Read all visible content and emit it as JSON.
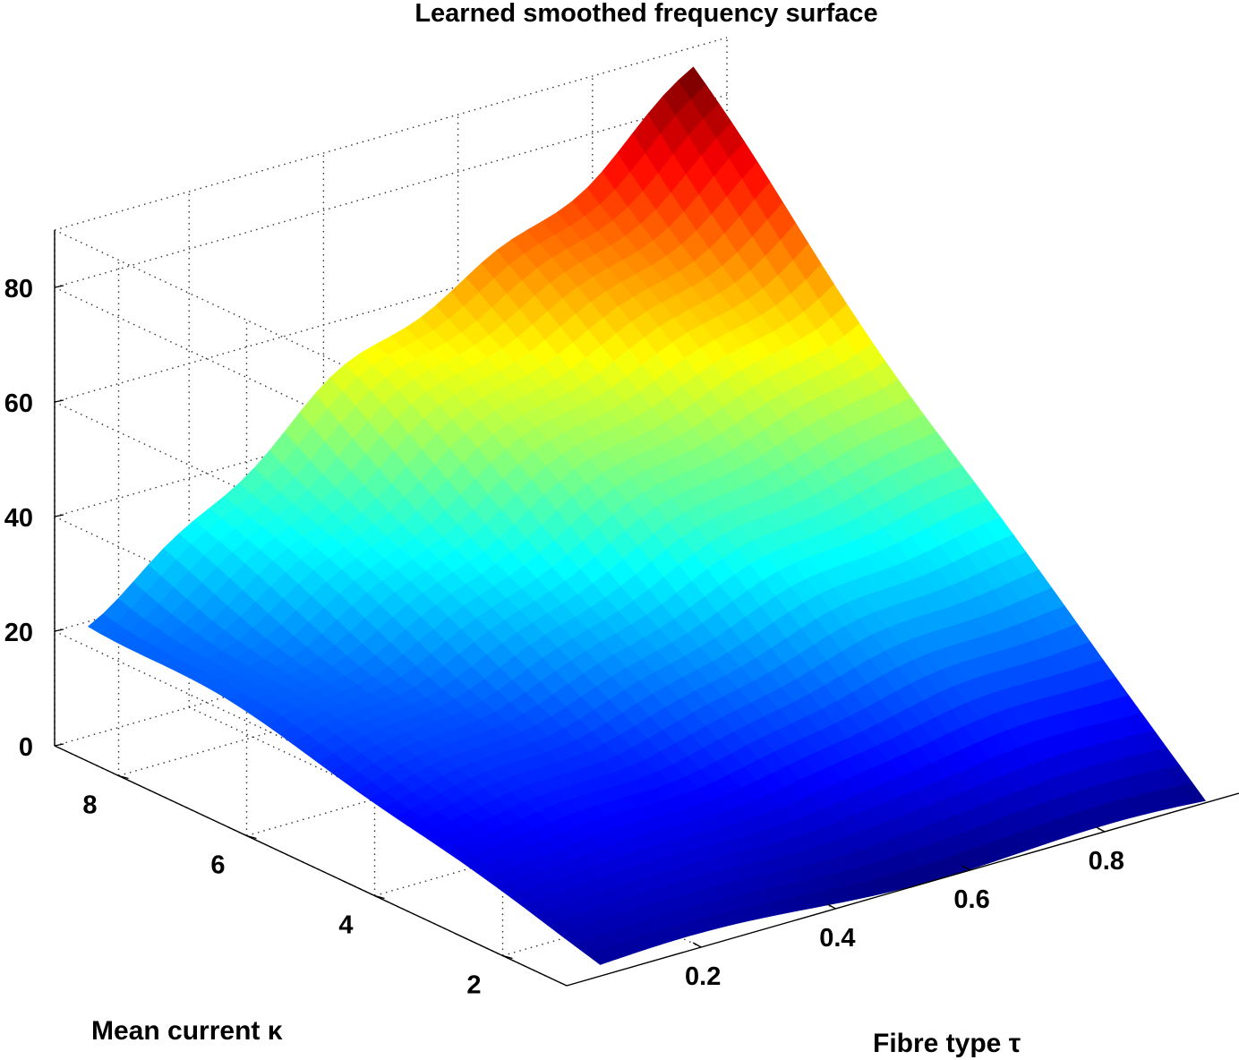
{
  "chart_data": {
    "type": "surface",
    "title": "Learned smoothed frequency surface",
    "xlabel": "Fibre type τ",
    "ylabel": "Mean current κ",
    "zlabel": "",
    "x_ticks": [
      "0.2",
      "0.4",
      "0.6",
      "0.8"
    ],
    "y_ticks": [
      "2",
      "4",
      "6",
      "8"
    ],
    "z_ticks": [
      "0",
      "20",
      "40",
      "60",
      "80"
    ],
    "x_tick_values": [
      0.2,
      0.4,
      0.6,
      0.8
    ],
    "y_tick_values": [
      2,
      4,
      6,
      8
    ],
    "z_tick_values": [
      0,
      20,
      40,
      60,
      80
    ],
    "xlim": [
      0,
      1
    ],
    "ylim": [
      1,
      9
    ],
    "zlim": [
      0,
      90
    ],
    "grid": true,
    "colormap": "jet",
    "x": [
      0.05,
      0.95
    ],
    "y": [
      1,
      9
    ],
    "z_corners": {
      "x0.05_y1": 2,
      "x0.95_y1": 0,
      "x0.05_y9": 22,
      "x0.95_y9": 85
    }
  }
}
